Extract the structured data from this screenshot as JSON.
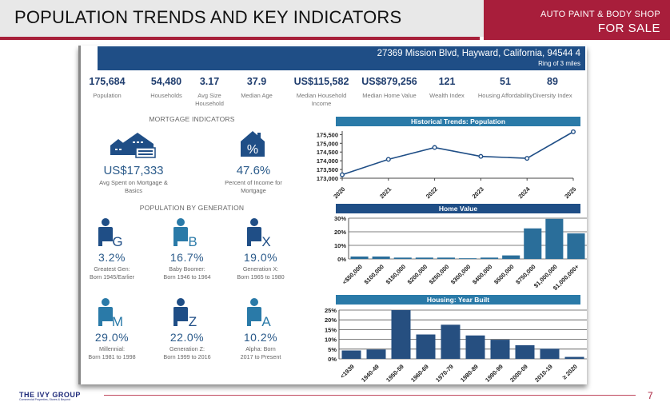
{
  "header": {
    "title": "POPULATION TRENDS AND KEY INDICATORS",
    "badge_line1": "AUTO PAINT & BODY SHOP",
    "badge_line2": "FOR SALE",
    "accent_color": "#a81e3b"
  },
  "address": {
    "main": "27369 Mission Blvd, Hayward, California, 94544 4",
    "ring": "Ring of 3 miles"
  },
  "stats": [
    {
      "value": "175,684",
      "label": "Population"
    },
    {
      "value": "54,480",
      "label": "Households"
    },
    {
      "value": "3.17",
      "label": "Avg Size Household"
    },
    {
      "value": "37.9",
      "label": "Median Age"
    },
    {
      "value": "US$115,582",
      "label": "Median Household Income"
    },
    {
      "value": "US$879,256",
      "label": "Median Home Value"
    },
    {
      "value": "121",
      "label": "Wealth Index"
    },
    {
      "value": "51",
      "label": "Housing Affordability"
    },
    {
      "value": "89",
      "label": "Diversity Index"
    }
  ],
  "mortgage": {
    "title": "MORTGAGE INDICATORS",
    "items": [
      {
        "icon": "house-check-icon",
        "value": "US$17,333",
        "label": "Avg Spent on Mortgage & Basics"
      },
      {
        "icon": "house-percent-icon",
        "value": "47.6%",
        "label": "Percent of Income for Mortgage"
      }
    ]
  },
  "generation": {
    "title": "POPULATION BY GENERATION",
    "items": [
      {
        "letter": "G",
        "value": "3.2%",
        "label1": "Greatest Gen:",
        "label2": "Born 1945/Earlier",
        "color": "#1f4e86"
      },
      {
        "letter": "B",
        "value": "16.7%",
        "label1": "Baby Boomer:",
        "label2": "Born 1946 to 1964",
        "color": "#2a7aa8"
      },
      {
        "letter": "X",
        "value": "19.0%",
        "label1": "Generation X:",
        "label2": "Born 1965 to 1980",
        "color": "#1f4e86"
      },
      {
        "letter": "M",
        "value": "29.0%",
        "label1": "Millennial:",
        "label2": "Born 1981 to 1998",
        "color": "#2a7aa8"
      },
      {
        "letter": "Z",
        "value": "22.0%",
        "label1": "Generation Z:",
        "label2": "Born 1999 to 2016",
        "color": "#1f4e86"
      },
      {
        "letter": "A",
        "value": "10.2%",
        "label1": "Alpha:  Born",
        "label2": "2017 to Present",
        "color": "#2a7aa8"
      }
    ]
  },
  "chart_data": [
    {
      "type": "line",
      "title": "Historical Trends: Population",
      "x": [
        "2020",
        "2021",
        "2022",
        "2023",
        "2024",
        "2025"
      ],
      "values": [
        173200,
        174080,
        174760,
        174250,
        174140,
        175660
      ],
      "yticks": [
        "173,000",
        "173,500",
        "174,000",
        "174,500",
        "175,000",
        "175,500"
      ],
      "ylim": [
        173000,
        175700
      ],
      "color": "#1f4e86",
      "header_color": "#2a7aa8"
    },
    {
      "type": "bar",
      "title": "Home Value",
      "categories": [
        "<$50,000",
        "$100,000",
        "$150,000",
        "$200,000",
        "$250,000",
        "$300,000",
        "$400,000",
        "$500,000",
        "$750,000",
        "$1,000,000",
        "$1,000,000+"
      ],
      "values": [
        1.8,
        1.8,
        1.0,
        1.0,
        1.0,
        0.5,
        1.0,
        2.6,
        22.5,
        29.5,
        18.8
      ],
      "yticks": [
        "0%",
        "10%",
        "20%",
        "30%"
      ],
      "ylim": [
        0,
        30
      ],
      "color": "#2a6e9a",
      "header_color": "#1f4e86"
    },
    {
      "type": "bar",
      "title": "Housing: Year Built",
      "categories": [
        "<1939",
        "1940-49",
        "1950-59",
        "1960-69",
        "1970-79",
        "1980-89",
        "1990-99",
        "2000-09",
        "2010-19",
        "≥ 2020"
      ],
      "values": [
        4.3,
        4.8,
        25.0,
        12.5,
        17.5,
        12.0,
        9.8,
        7.0,
        5.2,
        1.0
      ],
      "yticks": [
        "0%",
        "5%",
        "10%",
        "15%",
        "20%",
        "25%"
      ],
      "ylim": [
        0,
        25
      ],
      "color": "#264f80",
      "header_color": "#2a7aa8"
    }
  ],
  "footer": {
    "logo": "THE IVY GROUP",
    "logo_sub": "Commercial Properties, Stores & Beyond",
    "page_number": "7"
  }
}
